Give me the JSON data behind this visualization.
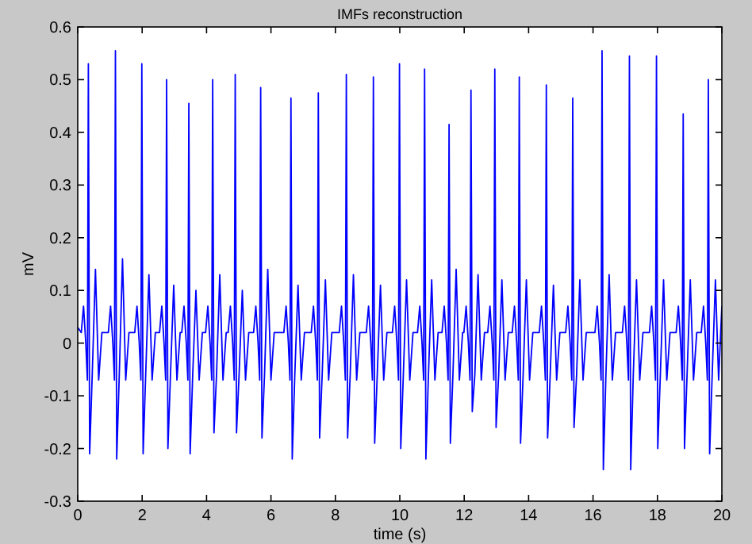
{
  "chart_data": {
    "type": "line",
    "title": "IMFs reconstruction",
    "xlabel": "time (s)",
    "ylabel": "mV",
    "xlim": [
      0,
      20
    ],
    "xticks": [
      0,
      2,
      4,
      6,
      8,
      10,
      12,
      14,
      16,
      18,
      20
    ],
    "ylim": [
      -0.3,
      0.6
    ],
    "yticks": [
      -0.3,
      -0.2,
      -0.1,
      0,
      0.1,
      0.2,
      0.3,
      0.4,
      0.5,
      0.6
    ],
    "grid": false,
    "marker": "none",
    "line_style": "solid",
    "series": [
      {
        "color": "#0000ff",
        "x": [
          0,
          0.11,
          0.18,
          0.25,
          0.3,
          0.33,
          0.37,
          0.45,
          0.55,
          0.65,
          0.75,
          0.95,
          1.02,
          1.09,
          1.14,
          1.17,
          1.21,
          1.29,
          1.39,
          1.49,
          1.59,
          1.77,
          1.84,
          1.91,
          1.96,
          1.99,
          2.03,
          2.11,
          2.21,
          2.31,
          2.41,
          2.54,
          2.61,
          2.68,
          2.73,
          2.76,
          2.8,
          2.88,
          2.98,
          3.08,
          3.18,
          3.23,
          3.3,
          3.37,
          3.42,
          3.45,
          3.49,
          3.57,
          3.67,
          3.77,
          3.87,
          3.97,
          4.04,
          4.11,
          4.16,
          4.19,
          4.23,
          4.31,
          4.41,
          4.51,
          4.61,
          4.67,
          4.74,
          4.81,
          4.86,
          4.89,
          4.93,
          5.01,
          5.11,
          5.21,
          5.31,
          5.46,
          5.53,
          5.6,
          5.65,
          5.68,
          5.72,
          5.8,
          5.9,
          6.0,
          6.1,
          6.4,
          6.47,
          6.54,
          6.59,
          6.62,
          6.66,
          6.74,
          6.84,
          6.94,
          7.04,
          7.25,
          7.32,
          7.39,
          7.44,
          7.47,
          7.51,
          7.59,
          7.69,
          7.79,
          7.89,
          8.12,
          8.19,
          8.26,
          8.31,
          8.34,
          8.38,
          8.46,
          8.56,
          8.66,
          8.76,
          8.96,
          9.03,
          9.1,
          9.15,
          9.18,
          9.22,
          9.3,
          9.4,
          9.5,
          9.6,
          9.77,
          9.84,
          9.91,
          9.96,
          9.99,
          10.03,
          10.11,
          10.21,
          10.31,
          10.41,
          10.55,
          10.62,
          10.69,
          10.74,
          10.77,
          10.81,
          10.89,
          10.99,
          11.09,
          11.19,
          11.31,
          11.38,
          11.45,
          11.5,
          11.53,
          11.57,
          11.65,
          11.75,
          11.85,
          11.95,
          11.99,
          12.06,
          12.13,
          12.18,
          12.21,
          12.25,
          12.33,
          12.43,
          12.53,
          12.63,
          12.73,
          12.8,
          12.87,
          12.92,
          12.95,
          12.99,
          13.07,
          13.17,
          13.27,
          13.37,
          13.49,
          13.56,
          13.63,
          13.68,
          13.71,
          13.75,
          13.83,
          13.93,
          14.03,
          14.13,
          14.33,
          14.4,
          14.47,
          14.52,
          14.55,
          14.59,
          14.67,
          14.77,
          14.87,
          14.97,
          15.15,
          15.22,
          15.29,
          15.34,
          15.37,
          15.41,
          15.49,
          15.59,
          15.69,
          15.79,
          16.06,
          16.13,
          16.2,
          16.25,
          16.28,
          16.32,
          16.4,
          16.5,
          16.6,
          16.7,
          16.91,
          16.98,
          17.05,
          17.1,
          17.13,
          17.17,
          17.25,
          17.35,
          17.45,
          17.55,
          17.75,
          17.82,
          17.89,
          17.94,
          17.97,
          18.01,
          18.09,
          18.19,
          18.29,
          18.39,
          18.58,
          18.65,
          18.72,
          18.77,
          18.8,
          18.84,
          18.92,
          19.02,
          19.12,
          19.22,
          19.36,
          19.43,
          19.5,
          19.55,
          19.58,
          19.62,
          19.7,
          19.8,
          19.9,
          20
        ],
        "values": [
          0.03,
          0.02,
          0.07,
          0,
          -0.07,
          0.53,
          -0.21,
          -0.06,
          0.14,
          -0.07,
          0.02,
          0.02,
          0.07,
          0,
          -0.07,
          0.555,
          -0.22,
          -0.06,
          0.16,
          -0.07,
          0.02,
          0.02,
          0.07,
          0,
          -0.07,
          0.53,
          -0.21,
          -0.06,
          0.13,
          -0.07,
          0.02,
          0.02,
          0.07,
          0,
          -0.07,
          0.5,
          -0.2,
          -0.06,
          0.11,
          -0.07,
          0.02,
          0.02,
          0.07,
          0,
          -0.07,
          0.455,
          -0.21,
          -0.06,
          0.1,
          -0.07,
          0.02,
          0.02,
          0.07,
          0,
          -0.07,
          0.5,
          -0.17,
          -0.06,
          0.13,
          -0.07,
          0.02,
          0.02,
          0.07,
          0,
          -0.07,
          0.51,
          -0.17,
          -0.06,
          0.1,
          -0.07,
          0.02,
          0.02,
          0.07,
          0,
          -0.07,
          0.485,
          -0.18,
          -0.06,
          0.14,
          -0.07,
          0.02,
          0.02,
          0.07,
          0,
          -0.07,
          0.465,
          -0.22,
          -0.06,
          0.11,
          -0.07,
          0.02,
          0.02,
          0.07,
          0,
          -0.07,
          0.475,
          -0.18,
          -0.06,
          0.12,
          -0.07,
          0.02,
          0.02,
          0.07,
          0,
          -0.07,
          0.51,
          -0.18,
          -0.06,
          0.13,
          -0.07,
          0.02,
          0.02,
          0.07,
          0,
          -0.07,
          0.505,
          -0.19,
          -0.06,
          0.11,
          -0.07,
          0.02,
          0.02,
          0.07,
          0,
          -0.07,
          0.53,
          -0.2,
          -0.06,
          0.12,
          -0.07,
          0.02,
          0.02,
          0.07,
          0,
          -0.07,
          0.52,
          -0.22,
          -0.06,
          0.12,
          -0.07,
          0.02,
          0.02,
          0.07,
          0,
          -0.07,
          0.415,
          -0.19,
          -0.06,
          0.14,
          -0.07,
          0.02,
          0.02,
          0.07,
          0,
          -0.07,
          0.48,
          -0.13,
          -0.06,
          0.13,
          -0.07,
          0.02,
          0.02,
          0.07,
          0,
          -0.07,
          0.52,
          -0.16,
          -0.06,
          0.12,
          -0.07,
          0.02,
          0.02,
          0.07,
          0,
          -0.07,
          0.505,
          -0.19,
          -0.06,
          0.12,
          -0.07,
          0.02,
          0.02,
          0.07,
          0,
          -0.07,
          0.49,
          -0.18,
          -0.06,
          0.11,
          -0.07,
          0.02,
          0.02,
          0.07,
          0,
          -0.07,
          0.465,
          -0.16,
          -0.06,
          0.12,
          -0.07,
          0.02,
          0.02,
          0.07,
          0,
          -0.07,
          0.555,
          -0.24,
          -0.06,
          0.13,
          -0.07,
          0.02,
          0.02,
          0.07,
          0,
          -0.07,
          0.545,
          -0.24,
          -0.06,
          0.12,
          -0.07,
          0.02,
          0.02,
          0.07,
          0,
          -0.07,
          0.545,
          -0.2,
          -0.06,
          0.12,
          -0.07,
          0.02,
          0.02,
          0.07,
          0,
          -0.07,
          0.435,
          -0.2,
          -0.06,
          0.12,
          -0.07,
          0.02,
          0.02,
          0.07,
          0,
          -0.07,
          0.5,
          -0.21,
          -0.06,
          0.12,
          -0.07,
          0.07
        ]
      }
    ]
  }
}
